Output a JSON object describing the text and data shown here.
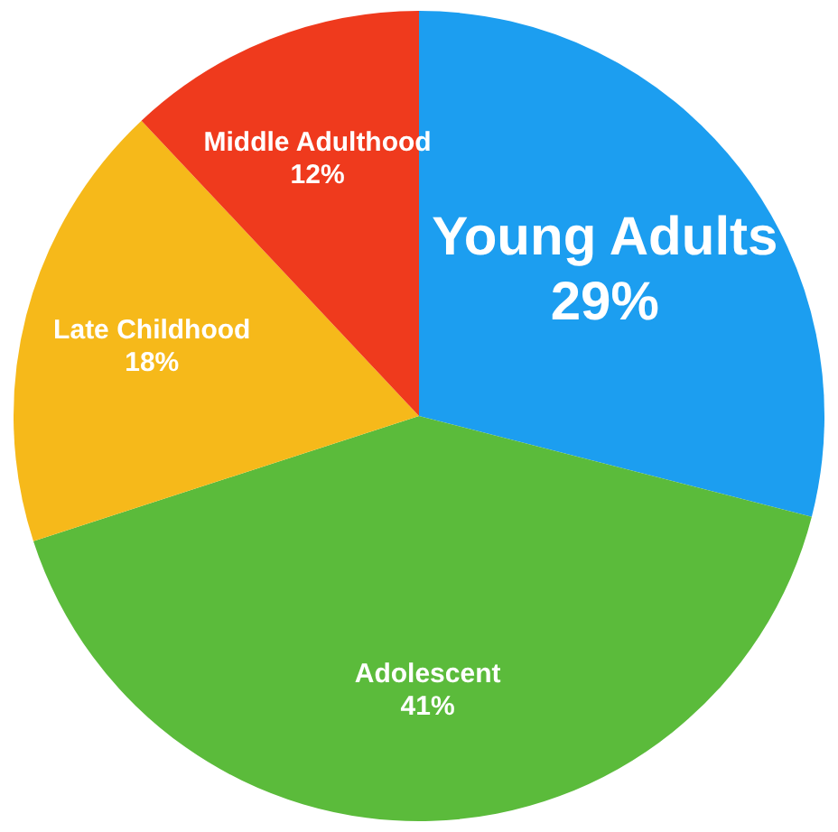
{
  "chart_data": {
    "type": "pie",
    "categories": [
      "Young Adults",
      "Adolescent",
      "Late Childhood",
      "Middle Adulthood"
    ],
    "values": [
      29,
      41,
      18,
      12
    ],
    "value_labels": [
      "29%",
      "41%",
      "18%",
      "12%"
    ],
    "colors": [
      "#1c9ef0",
      "#5bbb3b",
      "#f6b91a",
      "#ef3a1d"
    ],
    "legend": false
  }
}
